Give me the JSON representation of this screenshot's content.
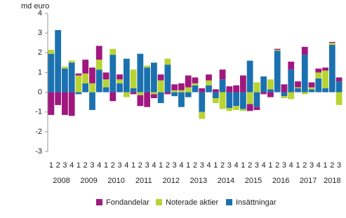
{
  "chart_data": {
    "type": "bar",
    "stacked": true,
    "y_label": "md euro",
    "categories": [
      "1",
      "2",
      "3",
      "4",
      "1",
      "2",
      "3",
      "4",
      "1",
      "2",
      "3",
      "4",
      "1",
      "2",
      "3",
      "4",
      "1",
      "2",
      "3",
      "4",
      "1",
      "2",
      "3",
      "4",
      "1",
      "2",
      "3",
      "4",
      "1",
      "2",
      "3",
      "4",
      "1",
      "2",
      "3",
      "4",
      "1",
      "2",
      "3",
      "4",
      "1",
      "2",
      "3"
    ],
    "years": [
      "2008",
      "2009",
      "2010",
      "2011",
      "2012",
      "2013",
      "2014",
      "2015",
      "2016",
      "2017",
      "2018"
    ],
    "series": [
      {
        "name": "Fondandelar",
        "color": "#a0177f",
        "values": [
          -1.15,
          -0.65,
          -1.15,
          -1.2,
          0.1,
          0.7,
          0.8,
          0.7,
          0.35,
          -0.45,
          0.25,
          0,
          -0.1,
          -0.55,
          -0.75,
          -0.2,
          0.3,
          -0.1,
          0.3,
          0.35,
          0.6,
          0.3,
          0.2,
          0.3,
          0.15,
          0.5,
          0.3,
          0.35,
          0.85,
          -0.35,
          -0.15,
          -0.1,
          -0.25,
          0.05,
          0.4,
          0.4,
          0.3,
          0.4,
          0.25,
          0.2,
          0.15,
          0.05,
          0.2
        ]
      },
      {
        "name": "Noterade aktier",
        "color": "#b7d433",
        "values": [
          0.2,
          0,
          0.1,
          0.1,
          0.85,
          0.5,
          0.45,
          0.5,
          0.4,
          0.3,
          0.2,
          -0.25,
          0.95,
          -0.15,
          0.1,
          -0.1,
          0.6,
          0.3,
          0.1,
          0.1,
          0.25,
          0.1,
          -0.35,
          0.25,
          -0.25,
          -0.85,
          -0.15,
          -0.2,
          -0.1,
          -0.6,
          0.5,
          0,
          0.5,
          0.05,
          -0.1,
          -0.35,
          0.05,
          -0.1,
          0.1,
          0.3,
          0.9,
          0.1,
          -0.65
        ]
      },
      {
        "name": "Insättningar",
        "color": "#1b71b0",
        "values": [
          1.95,
          3.15,
          1.2,
          1.5,
          -0.1,
          0.45,
          -0.9,
          1.15,
          0.25,
          1.9,
          0.45,
          1.7,
          0.2,
          1.95,
          1.25,
          1.5,
          -0.55,
          1.4,
          -0.2,
          -0.75,
          -0.25,
          0.35,
          -1.0,
          0.35,
          -0.3,
          0.65,
          -0.8,
          -0.7,
          -0.85,
          1.6,
          -0.75,
          0.8,
          0.15,
          2.1,
          -0.2,
          1.15,
          0.2,
          1.9,
          0.15,
          0.7,
          0.2,
          2.4,
          0.55
        ]
      }
    ],
    "ylim": [
      -3,
      4
    ],
    "yticks": [
      -3,
      -2,
      -1,
      0,
      1,
      2,
      3,
      4
    ],
    "grid": false
  }
}
